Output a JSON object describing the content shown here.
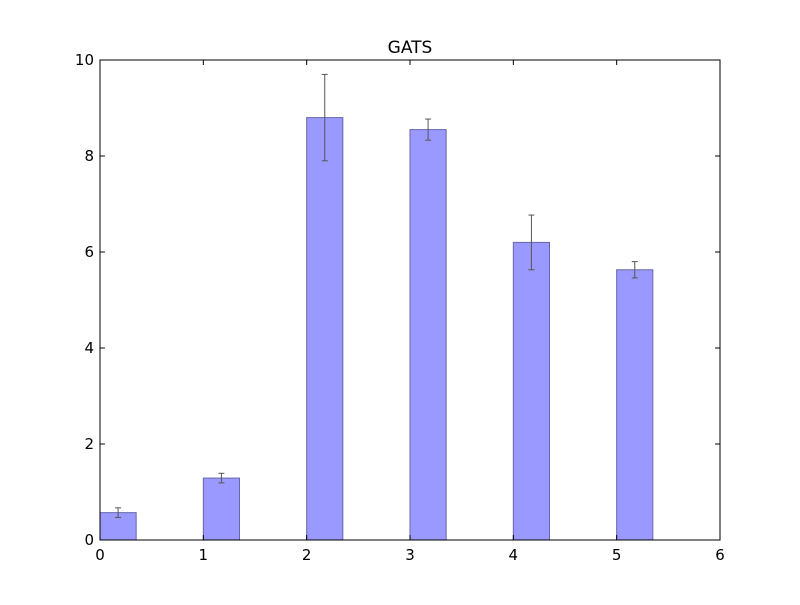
{
  "chart_data": {
    "type": "bar",
    "title": "GATS",
    "xlabel": "",
    "ylabel": "",
    "xlim": [
      0,
      6
    ],
    "ylim": [
      0,
      10
    ],
    "x_ticks": [
      0,
      1,
      2,
      3,
      4,
      5,
      6
    ],
    "y_ticks": [
      0,
      2,
      4,
      6,
      8,
      10
    ],
    "bar_start": [
      0,
      1,
      2,
      3,
      4,
      5
    ],
    "bar_width": 0.35,
    "values": [
      0.57,
      1.29,
      8.8,
      8.55,
      6.2,
      5.63
    ],
    "errors": [
      0.1,
      0.1,
      0.9,
      0.22,
      0.57,
      0.17
    ],
    "grid": false,
    "legend": "none",
    "colors": {
      "bar_fill": "#9999ff",
      "bar_edge": "#6666aa",
      "error_bar": "#555555",
      "axes": "#000000"
    }
  }
}
